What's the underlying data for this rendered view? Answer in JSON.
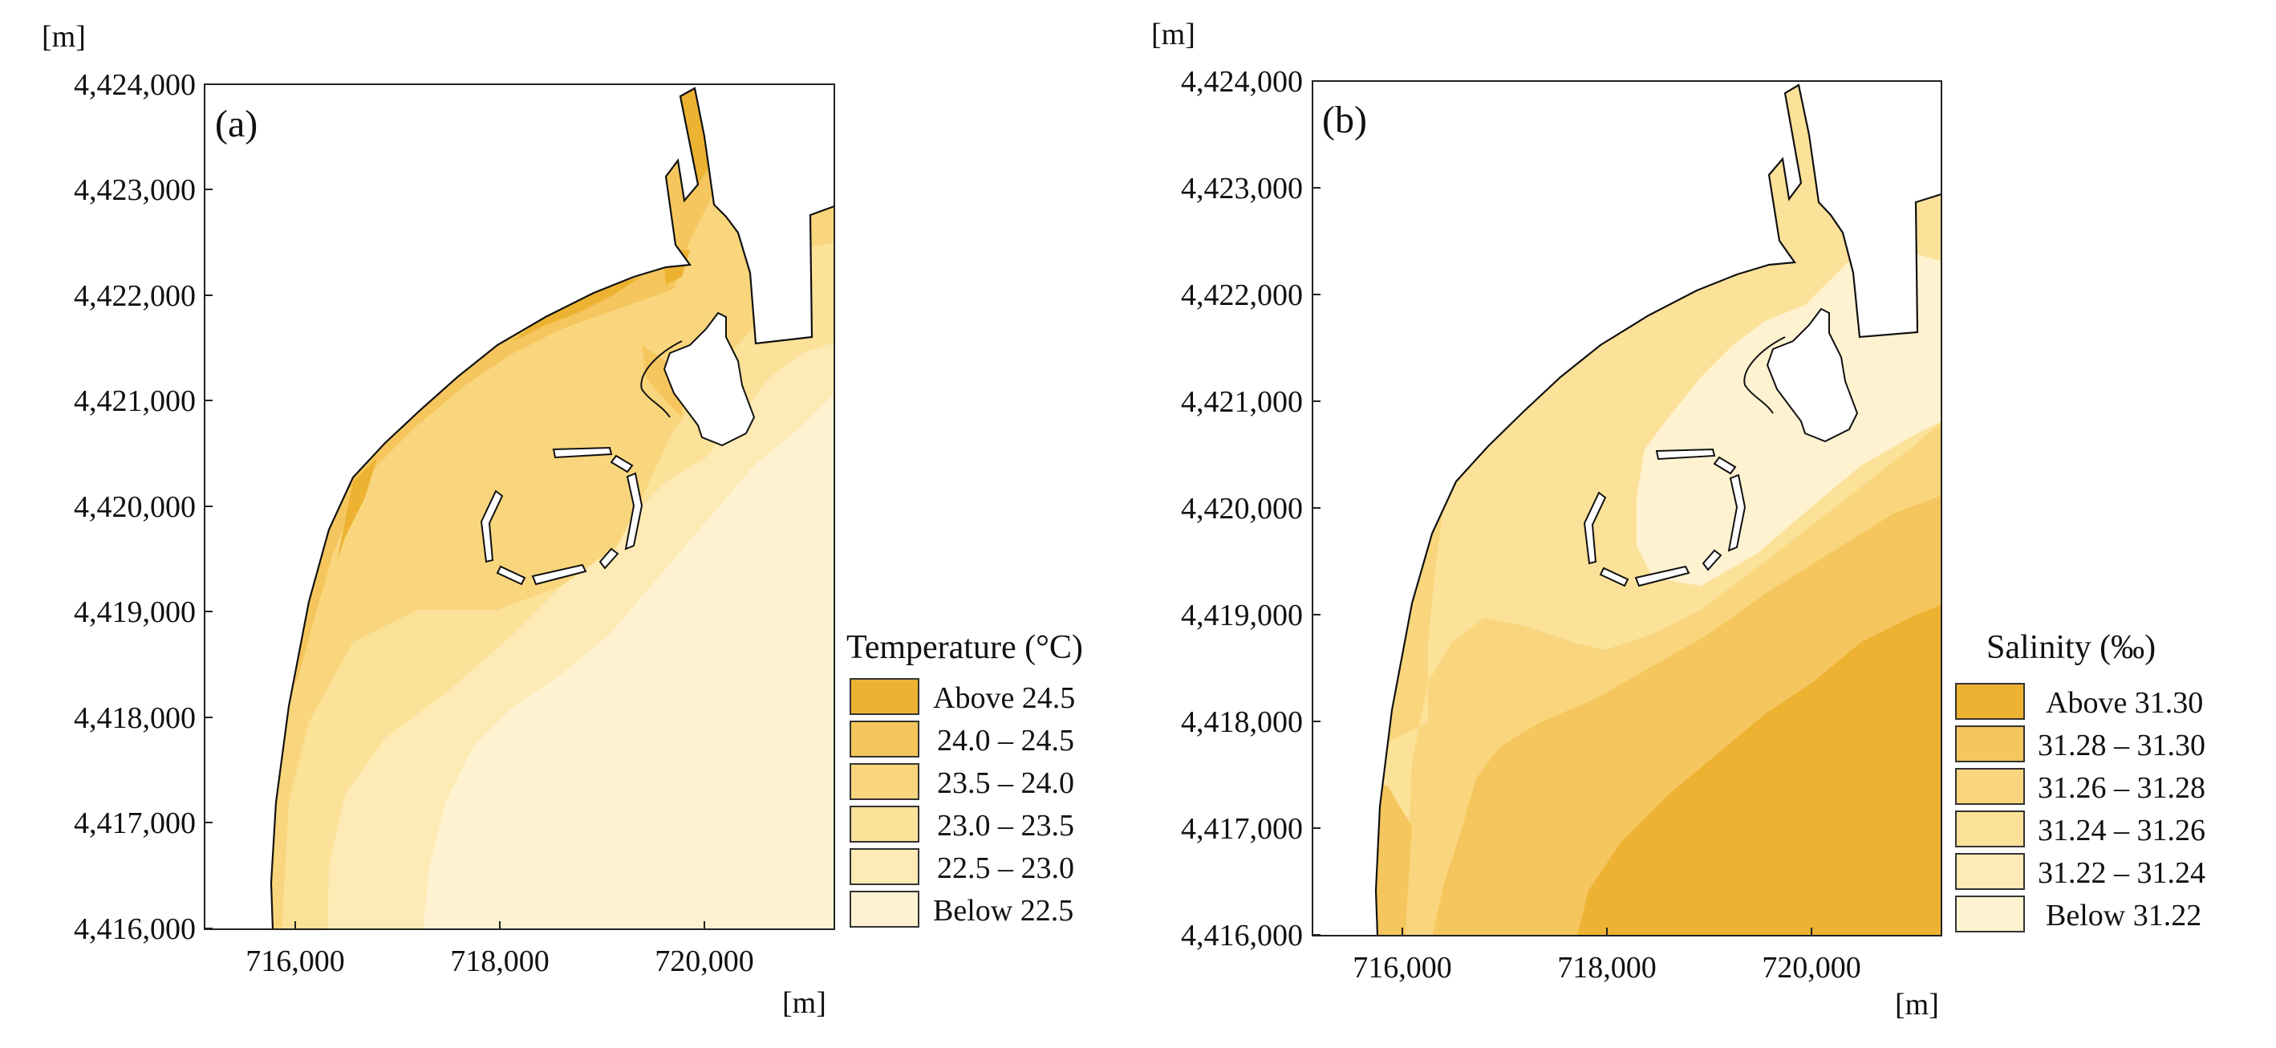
{
  "panels": [
    {
      "id": "a",
      "label": "(a)",
      "unit_top": "[m]",
      "unit_bottom": "[m]",
      "y_ticks": [
        "4,424,000",
        "4,423,000",
        "4,422,000",
        "4,421,000",
        "4,420,000",
        "4,419,000",
        "4,418,000",
        "4,417,000",
        "4,416,000"
      ],
      "x_ticks": [
        "716,000",
        "718,000",
        "720,000"
      ],
      "legend": {
        "title": "Temperature (°C)",
        "entries": [
          {
            "label": "Above   24.5",
            "color": "#EDB232"
          },
          {
            "label": "24.0  –  24.5",
            "color": "#F5C65D"
          },
          {
            "label": "23.5  –  24.0",
            "color": "#F9D67D"
          },
          {
            "label": "23.0  –  23.5",
            "color": "#FCE199"
          },
          {
            "label": "22.5  –  23.0",
            "color": "#FDEAB5"
          },
          {
            "label": "Below   22.5",
            "color": "#FEF2D0"
          }
        ]
      }
    },
    {
      "id": "b",
      "label": "(b)",
      "unit_top": "[m]",
      "unit_bottom": "[m]",
      "y_ticks": [
        "4,424,000",
        "4,423,000",
        "4,422,000",
        "4,421,000",
        "4,420,000",
        "4,419,000",
        "4,418,000",
        "4,417,000",
        "4,416,000"
      ],
      "x_ticks": [
        "716,000",
        "718,000",
        "720,000"
      ],
      "legend": {
        "title": "Salinity (‰)",
        "entries": [
          {
            "label": "Above   31.30",
            "color": "#EDB232"
          },
          {
            "label": "31.28  –  31.30",
            "color": "#F5C65D"
          },
          {
            "label": "31.26  –  31.28",
            "color": "#F9D67D"
          },
          {
            "label": "31.24  –  31.26",
            "color": "#FCE199"
          },
          {
            "label": "31.22  –  31.24",
            "color": "#FDEAB5"
          },
          {
            "label": "Below   31.22",
            "color": "#FEF2D0"
          }
        ]
      }
    }
  ]
}
